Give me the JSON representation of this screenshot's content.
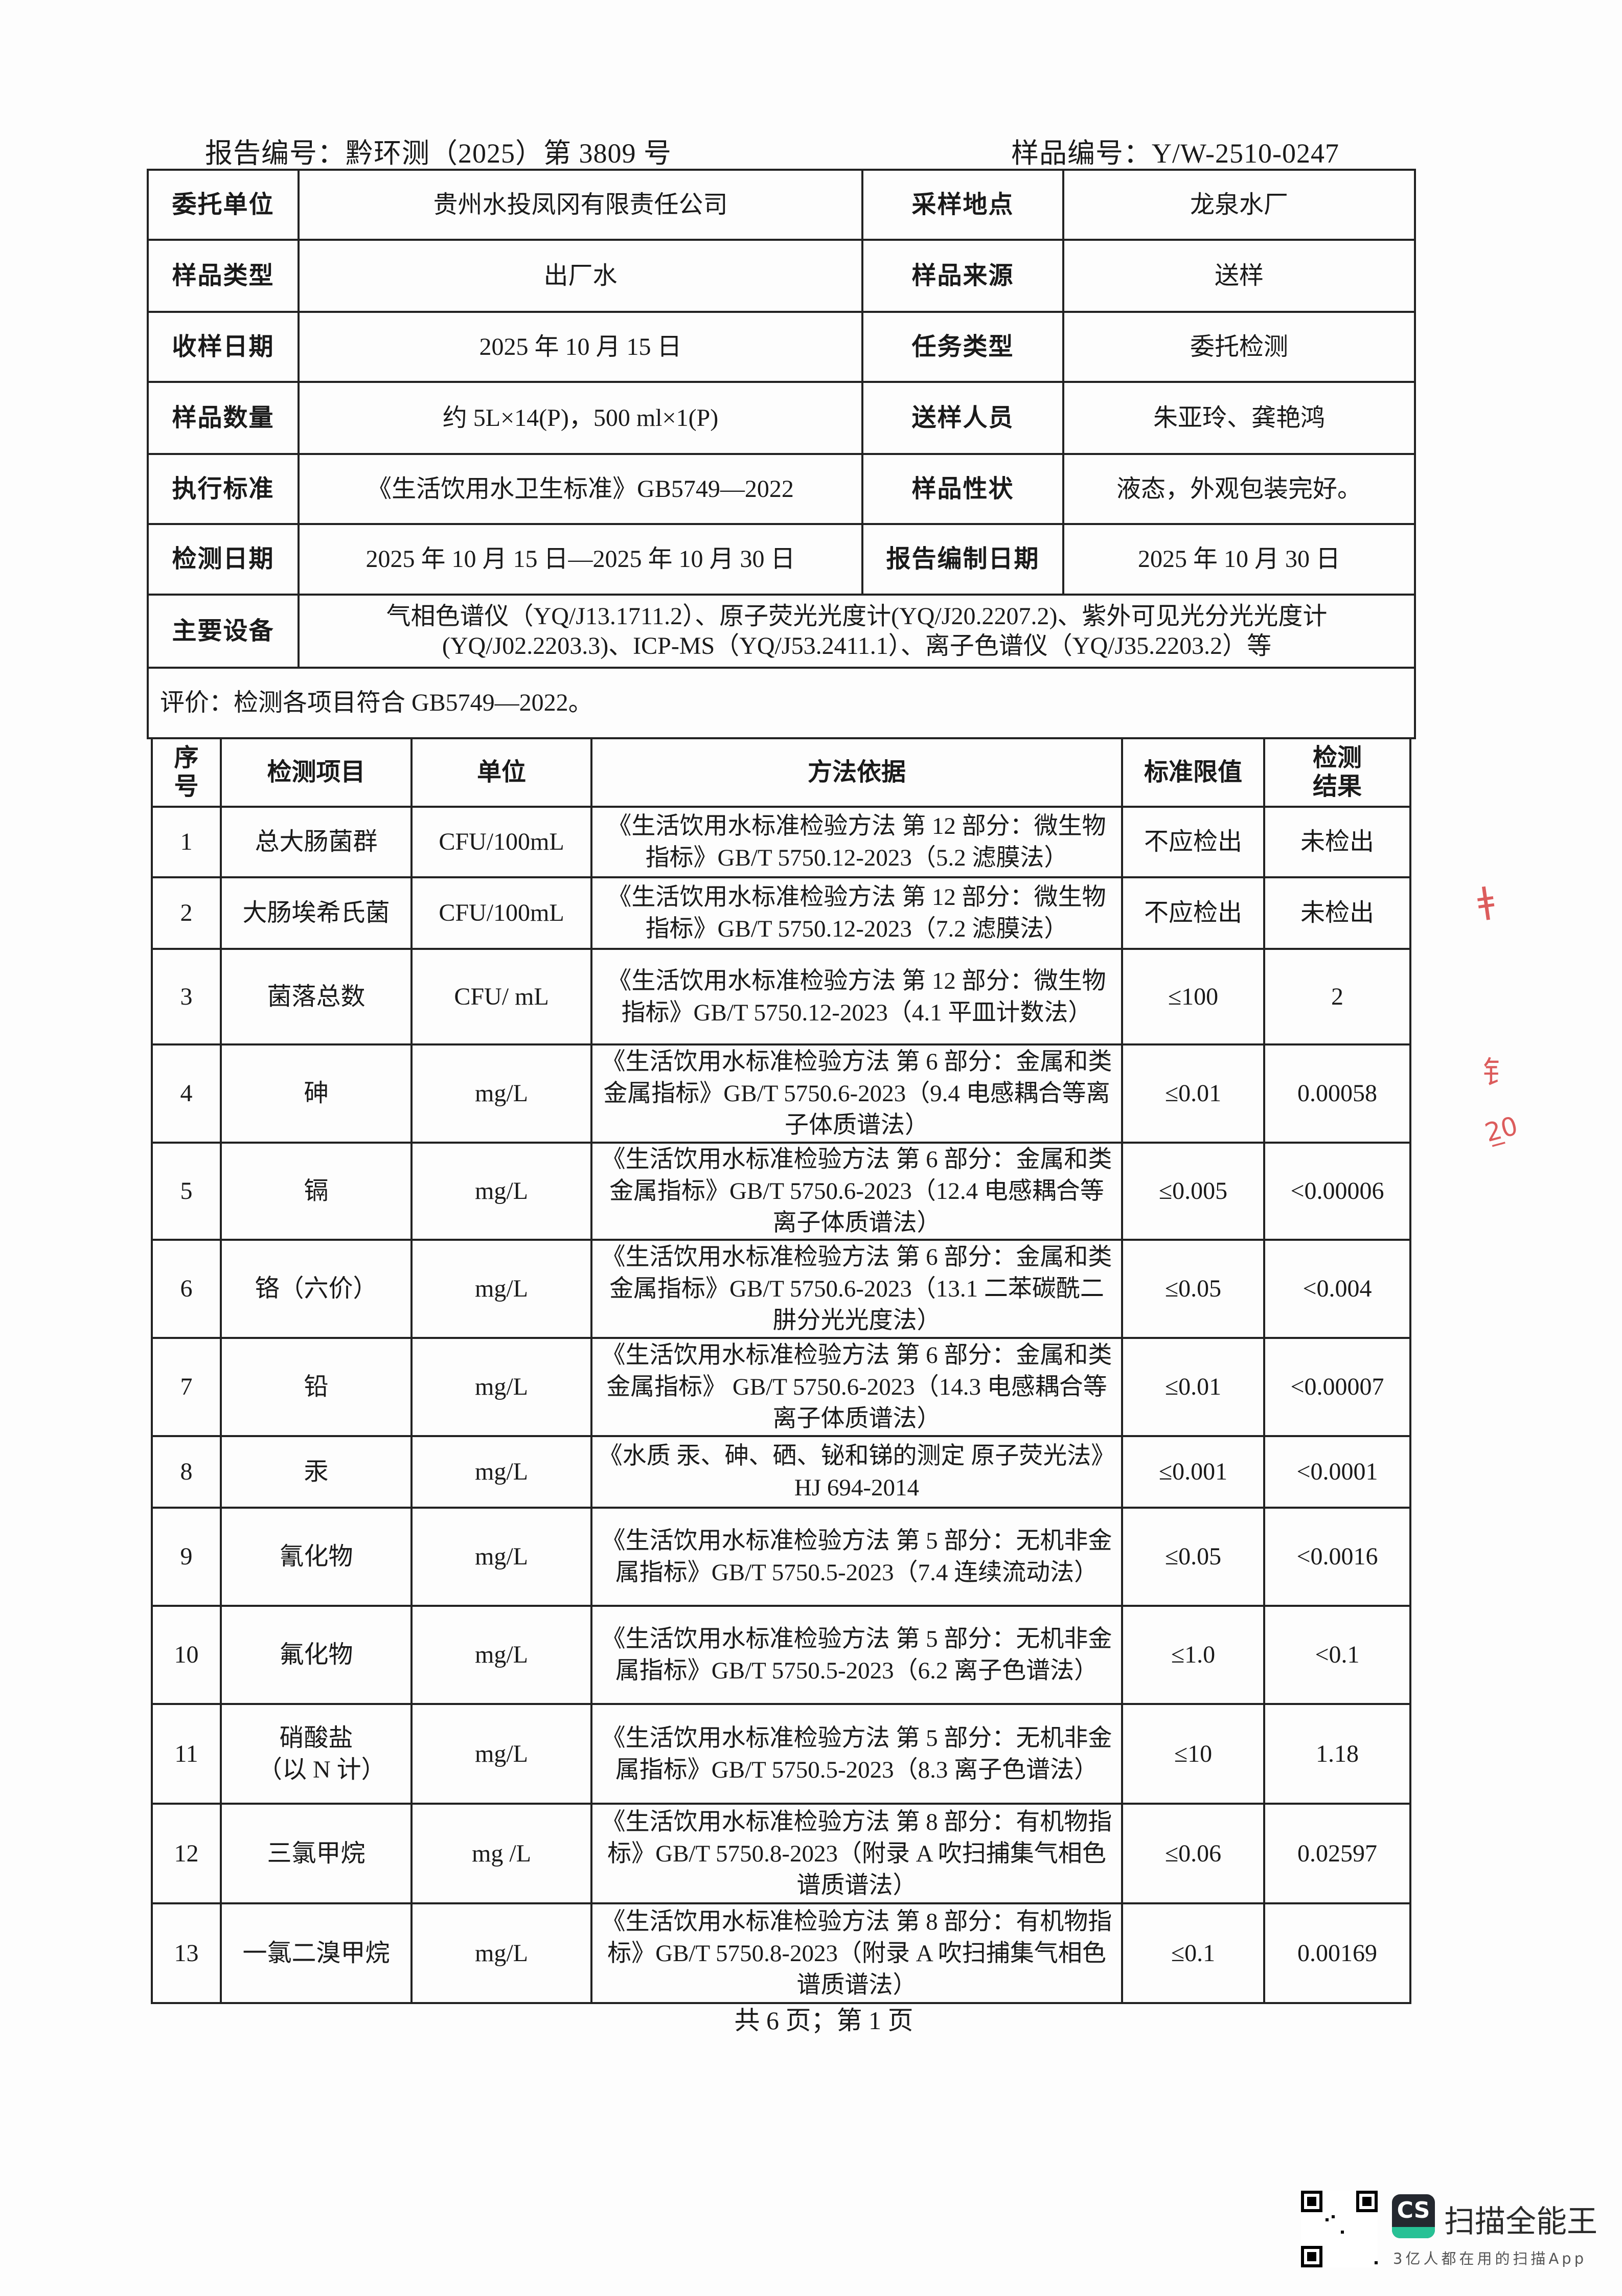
{
  "header": {
    "report_no": "报告编号：黔环测（2025）第 3809 号",
    "sample_no": "样品编号：Y/W-2510-0247"
  },
  "info": {
    "rows": [
      [
        "委托单位",
        "贵州水投凤冈有限责任公司",
        "采样地点",
        "龙泉水厂"
      ],
      [
        "样品类型",
        "出厂水",
        "样品来源",
        "送样"
      ],
      [
        "收样日期",
        "2025 年 10 月 15 日",
        "任务类型",
        "委托检测"
      ],
      [
        "样品数量",
        "约 5L×14(P)，500 ml×1(P)",
        "送样人员",
        "朱亚玲、龚艳鸿"
      ],
      [
        "执行标准",
        "《生活饮用水卫生标准》GB5749—2022",
        "样品性状",
        "液态，外观包装完好。"
      ],
      [
        "检测日期",
        "2025 年 10 月 15 日—2025 年 10 月 30 日",
        "报告编制日期",
        "2025 年 10 月 30 日"
      ]
    ],
    "equipment_label": "主要设备",
    "equipment": "气相色谱仪（YQ/J13.1711.2）、原子荧光光度计(YQ/J20.2207.2)、紫外可见光分光光度计(YQ/J02.2203.3)、ICP-MS（YQ/J53.2411.1）、离子色谱仪（YQ/J35.2203.2）等",
    "evaluation": "评价：检测各项目符合 GB5749—2022。"
  },
  "results": {
    "columns": [
      "序号",
      "检测项目",
      "单位",
      "方法依据",
      "标准限值",
      "检测结果"
    ],
    "rows": [
      [
        "1",
        "总大肠菌群",
        "CFU/100mL",
        "《生活饮用水标准检验方法 第 12 部分：微生物指标》GB/T 5750.12-2023（5.2 滤膜法）",
        "不应检出",
        "未检出"
      ],
      [
        "2",
        "大肠埃希氏菌",
        "CFU/100mL",
        "《生活饮用水标准检验方法 第 12 部分：微生物指标》GB/T 5750.12-2023（7.2 滤膜法）",
        "不应检出",
        "未检出"
      ],
      [
        "3",
        "菌落总数",
        "CFU/ mL",
        "《生活饮用水标准检验方法 第 12 部分：微生物指标》GB/T 5750.12-2023（4.1 平皿计数法）",
        "≤100",
        "2"
      ],
      [
        "4",
        "砷",
        "mg/L",
        "《生活饮用水标准检验方法 第 6 部分：金属和类金属指标》GB/T 5750.6-2023（9.4 电感耦合等离子体质谱法）",
        "≤0.01",
        "0.00058"
      ],
      [
        "5",
        "镉",
        "mg/L",
        "《生活饮用水标准检验方法 第 6 部分：金属和类金属指标》GB/T 5750.6-2023（12.4 电感耦合等离子体质谱法）",
        "≤0.005",
        "<0.00006"
      ],
      [
        "6",
        "铬（六价）",
        "mg/L",
        "《生活饮用水标准检验方法 第 6 部分：金属和类金属指标》GB/T 5750.6-2023（13.1 二苯碳酰二肼分光光度法）",
        "≤0.05",
        "<0.004"
      ],
      [
        "7",
        "铅",
        "mg/L",
        "《生活饮用水标准检验方法 第 6 部分：金属和类金属指标》 GB/T 5750.6-2023（14.3 电感耦合等离子体质谱法）",
        "≤0.01",
        "<0.00007"
      ],
      [
        "8",
        "汞",
        "mg/L",
        "《水质 汞、砷、硒、铋和锑的测定 原子荧光法》HJ 694-2014",
        "≤0.001",
        "<0.0001"
      ],
      [
        "9",
        "氰化物",
        "mg/L",
        "《生活饮用水标准检验方法 第 5 部分：无机非金属指标》GB/T 5750.5-2023（7.4 连续流动法）",
        "≤0.05",
        "<0.0016"
      ],
      [
        "10",
        "氟化物",
        "mg/L",
        "《生活饮用水标准检验方法 第 5 部分：无机非金属指标》GB/T 5750.5-2023（6.2 离子色谱法）",
        "≤1.0",
        "<0.1"
      ],
      [
        "11",
        "硝酸盐（以 N 计）",
        "mg/L",
        "《生活饮用水标准检验方法 第 5 部分：无机非金属指标》GB/T 5750.5-2023（8.3 离子色谱法）",
        "≤10",
        "1.18"
      ],
      [
        "12",
        "三氯甲烷",
        "mg /L",
        "《生活饮用水标准检验方法 第 8 部分：有机物指标》GB/T 5750.8-2023（附录 A 吹扫捕集气相色谱质谱法）",
        "≤0.06",
        "0.02597"
      ],
      [
        "13",
        "一氯二溴甲烷",
        "mg/L",
        "《生活饮用水标准检验方法 第 8 部分：有机物指标》GB/T 5750.8-2023（附录 A 吹扫捕集气相色谱质谱法）",
        "≤0.1",
        "0.00169"
      ]
    ]
  },
  "footer": {
    "page": "共 6 页；第 1 页"
  },
  "watermark": {
    "brand": "扫描全能王",
    "slogan": "3亿人都在用的扫描App",
    "logo_text": "CS",
    "logo_color": "#24282f",
    "accent": "#27c195"
  },
  "stamp_color": "#d43535"
}
